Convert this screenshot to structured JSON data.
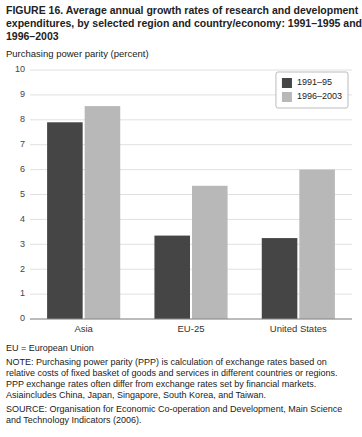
{
  "chart_data": {
    "type": "bar",
    "title": "FIGURE 16. Average annual growth rates of research and development expenditures, by selected region and country/economy: 1991–1995 and 1996–2003",
    "y_label": "Purchasing power parity (percent)",
    "categories": [
      "Asia",
      "EU-25",
      "United States"
    ],
    "series": [
      {
        "name": "1991–95",
        "color": "#454545",
        "values": [
          7.9,
          3.35,
          3.25
        ]
      },
      {
        "name": "1996–2003",
        "color": "#b8b8b8",
        "values": [
          8.55,
          5.35,
          6.0
        ]
      }
    ],
    "ylim": [
      0,
      10
    ],
    "yticks": [
      0,
      1,
      2,
      3,
      4,
      5,
      6,
      7,
      8,
      9,
      10
    ],
    "grid": true,
    "legend": "top-right",
    "annotations": [
      "EU = European Union",
      "NOTE: Purchasing power parity (PPP) is calculation of exchange rates based on relative costs of fixed basket of goods and services in different countries or regions. PPP exchange rates often differ from exchange rates set by financial markets. Asiaincludes China, Japan, Singapore, South Korea, and Taiwan.",
      "SOURCE: Organisation for Economic Co-operation and Development, Main Science and Technology Indicators (2006)."
    ]
  }
}
